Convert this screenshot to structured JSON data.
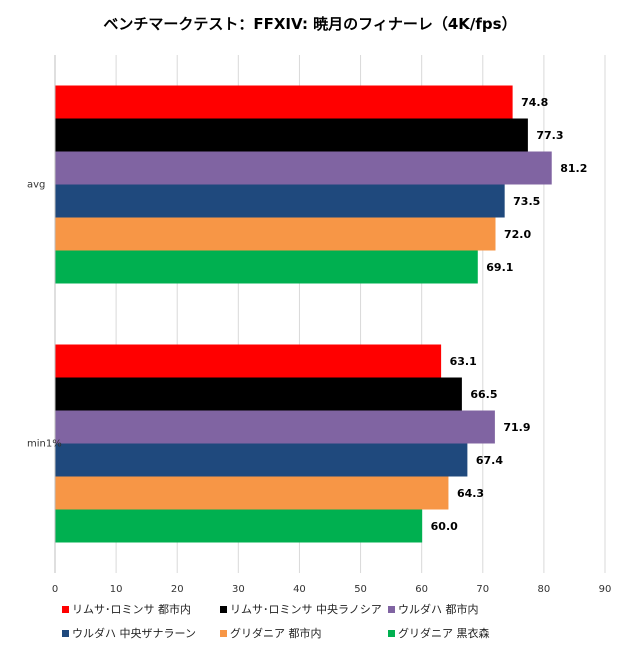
{
  "chart_data": {
    "type": "bar",
    "orientation": "horizontal",
    "title": "ベンチマークテスト：FFXIV: 暁月のフィナーレ（4K/fps）",
    "categories": [
      "avg",
      "min1%"
    ],
    "xlim": [
      0,
      90
    ],
    "xticks": [
      "0",
      "10",
      "20",
      "30",
      "40",
      "50",
      "60",
      "70",
      "80",
      "90"
    ],
    "grid": true,
    "legend_position": "bottom",
    "series": [
      {
        "name": "リムサ･ロミンサ 都市内",
        "color": "#ff0000",
        "values": [
          74.8,
          63.1
        ],
        "labels": [
          "74.8",
          "63.1"
        ]
      },
      {
        "name": "リムサ･ロミンサ 中央ラノシア",
        "color": "#000000",
        "values": [
          77.3,
          66.5
        ],
        "labels": [
          "77.3",
          "66.5"
        ]
      },
      {
        "name": "ウルダハ 都市内",
        "color": "#8064a2",
        "values": [
          81.2,
          71.9
        ],
        "labels": [
          "81.2",
          "71.9"
        ]
      },
      {
        "name": "ウルダハ 中央ザナラーン",
        "color": "#1f497d",
        "values": [
          73.5,
          67.4
        ],
        "labels": [
          "73.5",
          "67.4"
        ]
      },
      {
        "name": "グリダニア 都市内",
        "color": "#f79646",
        "values": [
          72.0,
          64.3
        ],
        "labels": [
          "72.0",
          "64.3"
        ]
      },
      {
        "name": "グリダニア 黒衣森",
        "color": "#00b050",
        "values": [
          69.1,
          60.0
        ],
        "labels": [
          "69.1",
          "60.0"
        ]
      }
    ]
  }
}
